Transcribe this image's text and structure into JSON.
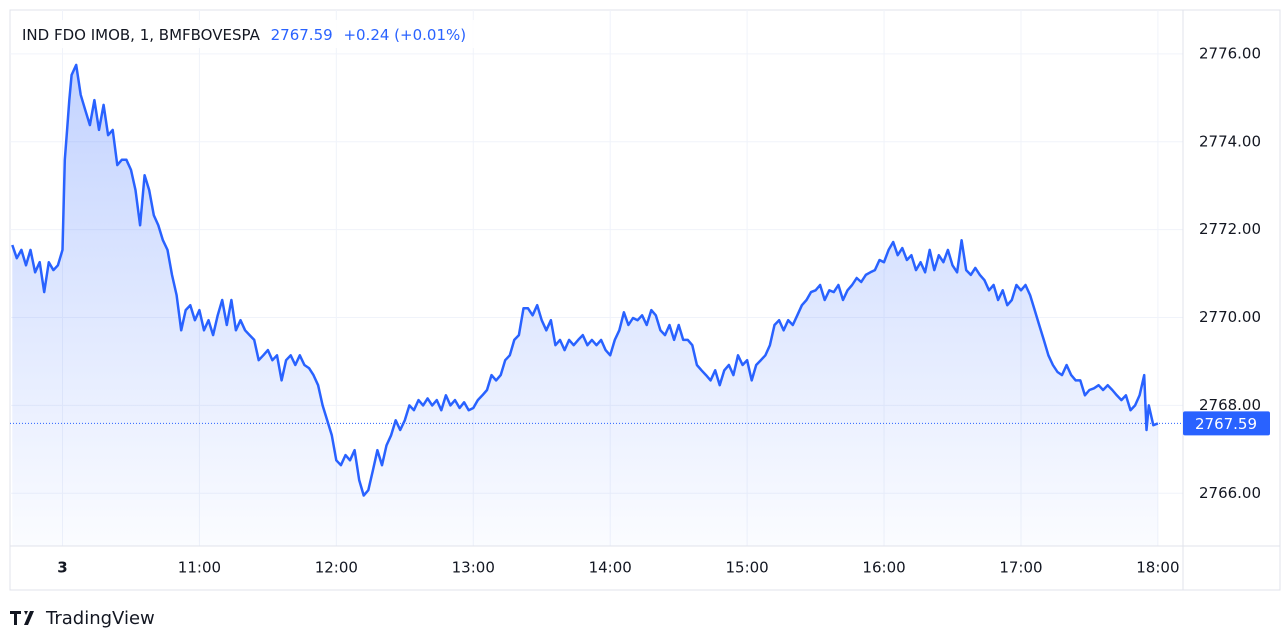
{
  "chart_data": {
    "type": "line",
    "symbol": "IND FDO IMOB, 1, BMFBOVESPA",
    "last_price": 2767.59,
    "change": "+0.24 (+0.01%)",
    "brand": "TradingView",
    "color": "#2962ff",
    "grid": true,
    "xlim": [
      "09:37",
      "18:11"
    ],
    "xticks": [
      {
        "value": "10:00",
        "label": "3"
      },
      "11:00",
      "12:00",
      "13:00",
      "14:00",
      "15:00",
      "16:00",
      "17:00",
      "18:00"
    ],
    "ylim": [
      2764.8,
      2777.0
    ],
    "yticks": [
      {
        "value": 2766,
        "label": "2766.00"
      },
      {
        "value": 2768,
        "label": "2768.00"
      },
      {
        "value": 2770,
        "label": "2770.00"
      },
      {
        "value": 2772,
        "label": "2772.00"
      },
      {
        "value": 2774,
        "label": "2774.00"
      },
      {
        "value": 2776,
        "label": "2776.00"
      }
    ],
    "x": [
      "09:38",
      "09:40",
      "09:42",
      "09:44",
      "09:46",
      "09:48",
      "09:50",
      "09:52",
      "09:54",
      "09:56",
      "09:58",
      "10:00",
      "10:01",
      "10:02",
      "10:03",
      "10:04",
      "10:06",
      "10:08",
      "10:10",
      "10:12",
      "10:14",
      "10:16",
      "10:18",
      "10:20",
      "10:22",
      "10:24",
      "10:26",
      "10:28",
      "10:30",
      "10:32",
      "10:34",
      "10:36",
      "10:38",
      "10:40",
      "10:42",
      "10:44",
      "10:46",
      "10:48",
      "10:50",
      "10:52",
      "10:54",
      "10:56",
      "10:58",
      "11:00",
      "11:02",
      "11:04",
      "11:06",
      "11:08",
      "11:10",
      "11:12",
      "11:14",
      "11:16",
      "11:18",
      "11:20",
      "11:22",
      "11:24",
      "11:26",
      "11:28",
      "11:30",
      "11:32",
      "11:34",
      "11:36",
      "11:38",
      "11:40",
      "11:42",
      "11:44",
      "11:46",
      "11:48",
      "11:50",
      "11:52",
      "11:54",
      "11:56",
      "11:58",
      "12:00",
      "12:02",
      "12:04",
      "12:06",
      "12:08",
      "12:10",
      "12:12",
      "12:14",
      "12:16",
      "12:18",
      "12:20",
      "12:22",
      "12:24",
      "12:26",
      "12:28",
      "12:30",
      "12:32",
      "12:34",
      "12:36",
      "12:38",
      "12:40",
      "12:42",
      "12:44",
      "12:46",
      "12:48",
      "12:50",
      "12:52",
      "12:54",
      "12:56",
      "12:58",
      "13:00",
      "13:02",
      "13:04",
      "13:06",
      "13:08",
      "13:10",
      "13:12",
      "13:14",
      "13:16",
      "13:18",
      "13:20",
      "13:22",
      "13:24",
      "13:26",
      "13:28",
      "13:30",
      "13:32",
      "13:34",
      "13:36",
      "13:38",
      "13:40",
      "13:42",
      "13:44",
      "13:46",
      "13:48",
      "13:50",
      "13:52",
      "13:54",
      "13:56",
      "13:58",
      "14:00",
      "14:02",
      "14:04",
      "14:06",
      "14:08",
      "14:10",
      "14:12",
      "14:14",
      "14:16",
      "14:18",
      "14:20",
      "14:22",
      "14:24",
      "14:26",
      "14:28",
      "14:30",
      "14:32",
      "14:34",
      "14:36",
      "14:38",
      "14:40",
      "14:42",
      "14:44",
      "14:46",
      "14:48",
      "14:50",
      "14:52",
      "14:54",
      "14:56",
      "14:58",
      "15:00",
      "15:02",
      "15:04",
      "15:06",
      "15:08",
      "15:10",
      "15:12",
      "15:14",
      "15:16",
      "15:18",
      "15:20",
      "15:22",
      "15:24",
      "15:26",
      "15:28",
      "15:30",
      "15:32",
      "15:34",
      "15:36",
      "15:38",
      "15:40",
      "15:42",
      "15:44",
      "15:46",
      "15:48",
      "15:50",
      "15:52",
      "15:54",
      "15:56",
      "15:58",
      "16:00",
      "16:02",
      "16:04",
      "16:06",
      "16:08",
      "16:10",
      "16:12",
      "16:14",
      "16:16",
      "16:18",
      "16:20",
      "16:22",
      "16:24",
      "16:26",
      "16:28",
      "16:30",
      "16:32",
      "16:34",
      "16:36",
      "16:38",
      "16:40",
      "16:42",
      "16:44",
      "16:46",
      "16:48",
      "16:50",
      "16:52",
      "16:54",
      "16:56",
      "16:58",
      "17:00",
      "17:02",
      "17:04",
      "17:06",
      "17:08",
      "17:10",
      "17:12",
      "17:14",
      "17:16",
      "17:18",
      "17:20",
      "17:22",
      "17:24",
      "17:26",
      "17:28",
      "17:30",
      "17:32",
      "17:34",
      "17:36",
      "17:38",
      "17:40",
      "17:42",
      "17:44",
      "17:46",
      "17:48",
      "17:50",
      "17:52",
      "17:54",
      "17:55",
      "17:56",
      "17:58",
      "18:00"
    ],
    "values": [
      2771.65,
      2771.35,
      2771.54,
      2771.19,
      2771.54,
      2771.03,
      2771.26,
      2770.58,
      2771.26,
      2771.08,
      2771.19,
      2771.54,
      2773.59,
      2774.27,
      2774.95,
      2775.52,
      2775.75,
      2775.07,
      2774.72,
      2774.38,
      2774.95,
      2774.27,
      2774.84,
      2774.15,
      2774.27,
      2773.47,
      2773.59,
      2773.59,
      2773.36,
      2772.9,
      2772.1,
      2773.24,
      2772.9,
      2772.33,
      2772.1,
      2771.76,
      2771.54,
      2770.97,
      2770.51,
      2769.71,
      2770.17,
      2770.28,
      2769.94,
      2770.17,
      2769.71,
      2769.94,
      2769.6,
      2770.05,
      2770.4,
      2769.83,
      2770.4,
      2769.71,
      2769.94,
      2769.71,
      2769.6,
      2769.49,
      2769.03,
      2769.14,
      2769.26,
      2769.03,
      2769.14,
      2768.57,
      2769.03,
      2769.14,
      2768.92,
      2769.14,
      2768.92,
      2768.85,
      2768.69,
      2768.46,
      2768.0,
      2767.66,
      2767.32,
      2766.75,
      2766.64,
      2766.87,
      2766.75,
      2766.98,
      2766.3,
      2765.95,
      2766.07,
      2766.52,
      2766.98,
      2766.64,
      2767.09,
      2767.32,
      2767.66,
      2767.44,
      2767.66,
      2768.0,
      2767.89,
      2768.12,
      2768.0,
      2768.16,
      2768.0,
      2768.12,
      2767.89,
      2768.23,
      2768.0,
      2768.12,
      2767.94,
      2768.07,
      2767.89,
      2767.94,
      2768.12,
      2768.23,
      2768.35,
      2768.69,
      2768.57,
      2768.69,
      2769.03,
      2769.14,
      2769.49,
      2769.6,
      2770.21,
      2770.21,
      2770.05,
      2770.28,
      2769.94,
      2769.71,
      2769.94,
      2769.37,
      2769.49,
      2769.26,
      2769.49,
      2769.37,
      2769.49,
      2769.6,
      2769.37,
      2769.49,
      2769.37,
      2769.49,
      2769.26,
      2769.14,
      2769.49,
      2769.71,
      2770.12,
      2769.83,
      2769.99,
      2769.94,
      2770.05,
      2769.83,
      2770.17,
      2770.05,
      2769.71,
      2769.6,
      2769.83,
      2769.49,
      2769.83,
      2769.49,
      2769.49,
      2769.37,
      2768.92,
      2768.8,
      2768.69,
      2768.57,
      2768.8,
      2768.46,
      2768.8,
      2768.92,
      2768.69,
      2769.14,
      2768.92,
      2769.03,
      2768.57,
      2768.92,
      2769.03,
      2769.14,
      2769.37,
      2769.83,
      2769.94,
      2769.71,
      2769.94,
      2769.83,
      2770.05,
      2770.28,
      2770.4,
      2770.58,
      2770.62,
      2770.74,
      2770.4,
      2770.62,
      2770.58,
      2770.74,
      2770.4,
      2770.62,
      2770.74,
      2770.9,
      2770.81,
      2770.97,
      2771.03,
      2771.08,
      2771.31,
      2771.26,
      2771.54,
      2771.72,
      2771.42,
      2771.58,
      2771.31,
      2771.42,
      2771.08,
      2771.26,
      2771.03,
      2771.54,
      2771.08,
      2771.42,
      2771.26,
      2771.54,
      2771.19,
      2771.03,
      2771.76,
      2771.08,
      2770.97,
      2771.13,
      2770.97,
      2770.85,
      2770.62,
      2770.74,
      2770.4,
      2770.62,
      2770.28,
      2770.4,
      2770.74,
      2770.62,
      2770.74,
      2770.51,
      2770.17,
      2769.83,
      2769.49,
      2769.14,
      2768.92,
      2768.76,
      2768.69,
      2768.92,
      2768.69,
      2768.57,
      2768.57,
      2768.23,
      2768.35,
      2768.39,
      2768.46,
      2768.35,
      2768.46,
      2768.35,
      2768.23,
      2768.12,
      2768.23,
      2767.89,
      2768.0,
      2768.23,
      2768.69,
      2767.44,
      2768.0,
      2767.55,
      2767.59
    ]
  }
}
